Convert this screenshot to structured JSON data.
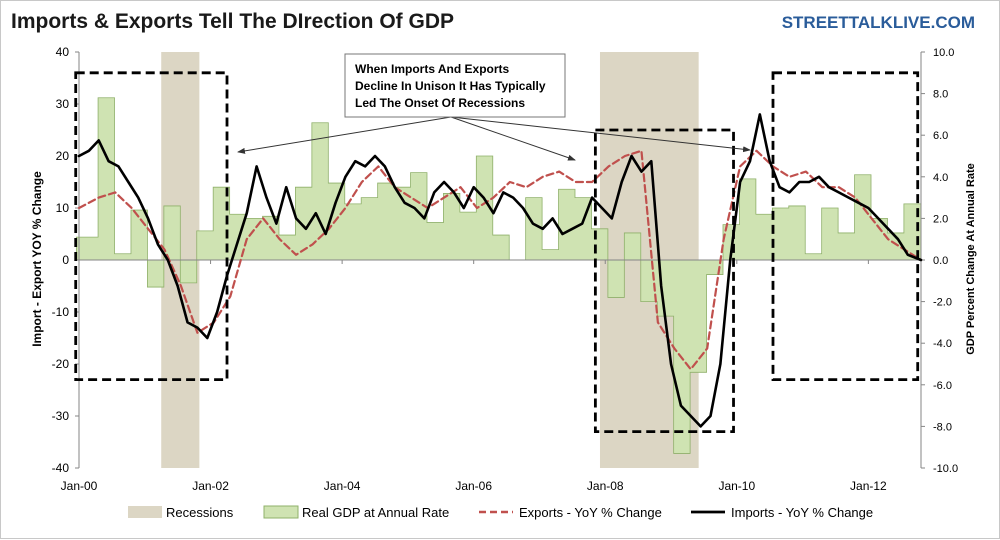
{
  "chart_data": {
    "type": "line",
    "title": "Imports & Exports Tell The DIrection Of GDP",
    "source": "STREETTALKLIVE.COM",
    "ylabel_left": "Import - Export YOY % Change",
    "ylabel_right": "GDP Percent Change At Annual Rate",
    "x_range": [
      2000.0,
      2012.8
    ],
    "ylim_left": [
      -40,
      40
    ],
    "ylim_right": [
      -10,
      10
    ],
    "x_ticks": [
      {
        "label": "Jan-00",
        "x": 2000.0
      },
      {
        "label": "Jan-02",
        "x": 2002.0
      },
      {
        "label": "Jan-04",
        "x": 2004.0
      },
      {
        "label": "Jan-06",
        "x": 2006.0
      },
      {
        "label": "Jan-08",
        "x": 2008.0
      },
      {
        "label": "Jan-10",
        "x": 2010.0
      },
      {
        "label": "Jan-12",
        "x": 2012.0
      }
    ],
    "y_ticks_left": [
      "40",
      "30",
      "20",
      "10",
      "0",
      "-10",
      "-20",
      "-30",
      "-40"
    ],
    "y_ticks_right": [
      "10.0",
      "8.0",
      "6.0",
      "4.0",
      "2.0",
      "0.0",
      "-2.0",
      "-4.0",
      "-6.0",
      "-8.0",
      "-10.0"
    ],
    "recessions": [
      [
        2001.25,
        2001.83
      ],
      [
        2007.92,
        2009.42
      ]
    ],
    "gdp_quarterly": {
      "x": [
        1999.96,
        2000.12,
        2000.29,
        2000.54,
        2000.79,
        2001.04,
        2001.29,
        2001.54,
        2001.79,
        2002.04,
        2002.29,
        2002.54,
        2002.79,
        2003.04,
        2003.29,
        2003.54,
        2003.79,
        2004.04,
        2004.29,
        2004.54,
        2004.79,
        2005.04,
        2005.29,
        2005.54,
        2005.79,
        2006.04,
        2006.29,
        2006.54,
        2006.79,
        2007.04,
        2007.29,
        2007.54,
        2007.79,
        2008.04,
        2008.29,
        2008.54,
        2008.79,
        2009.04,
        2009.29,
        2009.54,
        2009.79,
        2010.04,
        2010.29,
        2010.54,
        2010.79,
        2011.04,
        2011.29,
        2011.54,
        2011.79,
        2012.04,
        2012.29,
        2012.54,
        2012.79
      ],
      "values": [
        1.1,
        1.1,
        7.8,
        0.3,
        2.4,
        -1.3,
        2.6,
        -1.1,
        1.4,
        3.5,
        2.2,
        2.0,
        2.1,
        1.2,
        3.5,
        6.6,
        3.7,
        2.7,
        3.0,
        3.7,
        3.5,
        4.2,
        1.8,
        3.2,
        2.3,
        5.0,
        1.2,
        0.0,
        3.0,
        0.5,
        3.4,
        3.0,
        1.5,
        -1.8,
        1.3,
        -2.0,
        -2.7,
        -9.3,
        -5.4,
        -0.7,
        1.7,
        3.9,
        2.2,
        2.5,
        2.6,
        0.3,
        2.5,
        1.3,
        4.1,
        2.0,
        1.3,
        2.7,
        2.7
      ]
    },
    "series": [
      {
        "name": "Exports - YoY % Change",
        "x": [
          2000.0,
          2000.3,
          2000.55,
          2000.8,
          2001.05,
          2001.3,
          2001.55,
          2001.8,
          2002.05,
          2002.3,
          2002.55,
          2002.8,
          2003.05,
          2003.3,
          2003.55,
          2003.8,
          2004.05,
          2004.3,
          2004.55,
          2004.8,
          2005.05,
          2005.3,
          2005.55,
          2005.8,
          2006.05,
          2006.3,
          2006.55,
          2006.8,
          2007.05,
          2007.3,
          2007.55,
          2007.8,
          2008.05,
          2008.3,
          2008.55,
          2008.8,
          2009.05,
          2009.3,
          2009.55,
          2009.8,
          2010.05,
          2010.3,
          2010.55,
          2010.8,
          2011.05,
          2011.3,
          2011.55,
          2011.8,
          2012.05,
          2012.3,
          2012.55,
          2012.8
        ],
        "values": [
          10,
          12,
          13,
          10,
          6,
          2,
          -5,
          -14,
          -12,
          -7,
          4,
          8,
          4,
          1,
          3,
          6,
          10,
          15,
          18,
          14,
          12,
          10,
          12,
          14,
          10,
          12,
          15,
          14,
          16,
          17,
          15,
          15,
          18,
          20,
          21,
          -12,
          -17,
          -21,
          -17,
          4,
          18,
          21,
          18,
          16,
          17,
          14,
          14,
          12,
          8,
          4,
          2,
          0
        ]
      },
      {
        "name": "Imports - YoY % Change",
        "x": [
          2000.0,
          2000.15,
          2000.3,
          2000.45,
          2000.6,
          2000.75,
          2000.9,
          2001.05,
          2001.2,
          2001.35,
          2001.5,
          2001.65,
          2001.8,
          2001.95,
          2002.1,
          2002.25,
          2002.4,
          2002.55,
          2002.7,
          2002.85,
          2003.0,
          2003.15,
          2003.3,
          2003.45,
          2003.6,
          2003.75,
          2003.9,
          2004.05,
          2004.2,
          2004.35,
          2004.5,
          2004.65,
          2004.8,
          2004.95,
          2005.1,
          2005.25,
          2005.4,
          2005.55,
          2005.7,
          2005.85,
          2006.0,
          2006.15,
          2006.3,
          2006.45,
          2006.6,
          2006.75,
          2006.9,
          2007.05,
          2007.2,
          2007.35,
          2007.5,
          2007.65,
          2007.8,
          2007.95,
          2008.1,
          2008.25,
          2008.4,
          2008.55,
          2008.7,
          2008.85,
          2009.0,
          2009.15,
          2009.3,
          2009.45,
          2009.6,
          2009.75,
          2009.9,
          2010.05,
          2010.2,
          2010.35,
          2010.5,
          2010.65,
          2010.8,
          2010.95,
          2011.1,
          2011.25,
          2011.4,
          2011.55,
          2011.7,
          2011.85,
          2012.0,
          2012.15,
          2012.3,
          2012.45,
          2012.6,
          2012.8
        ],
        "values": [
          20,
          21,
          23,
          19,
          18,
          15,
          12,
          8,
          3,
          0,
          -5,
          -12,
          -13,
          -15,
          -10,
          -3,
          3,
          9,
          18,
          12,
          7,
          14,
          8,
          6,
          9,
          5,
          11,
          16,
          19,
          18,
          20,
          18,
          14,
          11,
          10,
          8,
          13,
          15,
          13,
          10,
          14,
          12,
          9,
          13,
          12,
          10,
          7,
          6,
          8,
          5,
          6,
          7,
          12,
          10,
          8,
          15,
          20,
          17,
          19,
          -5,
          -20,
          -28,
          -30,
          -32,
          -30,
          -20,
          0,
          15,
          19,
          28,
          19,
          14,
          13,
          15,
          15,
          16,
          14,
          13,
          12,
          11,
          10,
          8,
          6,
          4,
          1,
          0
        ]
      }
    ],
    "legend": [
      "Recessions",
      "Real GDP at Annual Rate",
      "Exports - YoY % Change",
      "Imports - YoY % Change"
    ],
    "annotation": {
      "lines": [
        "When Imports And Exports",
        "Decline In Unison It Has Typically",
        "Led The Onset Of Recessions"
      ]
    },
    "highlight_boxes": [
      {
        "from": 1999.95,
        "to": 2002.25,
        "top": 36,
        "bottom": -23
      },
      {
        "from": 2007.85,
        "to": 2009.95,
        "top": 25,
        "bottom": -33
      },
      {
        "from": 2010.55,
        "to": 2012.75,
        "top": 36,
        "bottom": -23
      }
    ],
    "colors": {
      "recession": "#dcd6c4",
      "gdp_fill": "#cfe3b2",
      "gdp_stroke": "#8fb06a",
      "exports": "#c0504d",
      "imports": "#000000",
      "title": "#1a1a1a",
      "source": "#2a5c9a"
    }
  }
}
